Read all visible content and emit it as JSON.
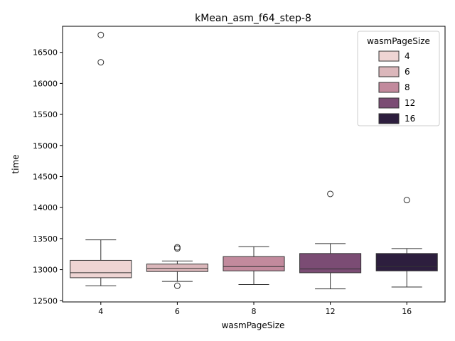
{
  "chart_data": {
    "type": "box",
    "title": "kMean_asm_f64_step-8",
    "xlabel": "wasmPageSize",
    "ylabel": "time",
    "ylim": [
      12480,
      16920
    ],
    "yticks": [
      12500,
      13000,
      13500,
      14000,
      14500,
      15000,
      15500,
      16000,
      16500
    ],
    "categories": [
      "4",
      "6",
      "8",
      "12",
      "16"
    ],
    "series": [
      {
        "category": "4",
        "color": "#eed4d3",
        "whisker_low": 12740,
        "q1": 12870,
        "median": 12950,
        "q3": 13150,
        "whisker_high": 13480,
        "outliers": [
          16340,
          16780
        ]
      },
      {
        "category": "6",
        "color": "#dbb7bb",
        "whisker_low": 12810,
        "q1": 12970,
        "median": 13020,
        "q3": 13090,
        "whisker_high": 13140,
        "outliers": [
          12740,
          13340,
          13360
        ]
      },
      {
        "category": "8",
        "color": "#c28a9d",
        "whisker_low": 12760,
        "q1": 12980,
        "median": 13050,
        "q3": 13210,
        "whisker_high": 13370,
        "outliers": []
      },
      {
        "category": "12",
        "color": "#7b4c74",
        "whisker_low": 12690,
        "q1": 12950,
        "median": 13010,
        "q3": 13260,
        "whisker_high": 13420,
        "outliers": [
          14220
        ]
      },
      {
        "category": "16",
        "color": "#2d1e3e",
        "whisker_low": 12720,
        "q1": 12980,
        "median": 13050,
        "q3": 13260,
        "whisker_high": 13340,
        "outliers": [
          14120
        ]
      }
    ],
    "legend": {
      "title": "wasmPageSize",
      "placement": "top-right",
      "entries": [
        {
          "label": "4",
          "color": "#eed4d3"
        },
        {
          "label": "6",
          "color": "#dbb7bb"
        },
        {
          "label": "8",
          "color": "#c28a9d"
        },
        {
          "label": "12",
          "color": "#7b4c74"
        },
        {
          "label": "16",
          "color": "#2d1e3e"
        }
      ]
    },
    "grid": false
  }
}
